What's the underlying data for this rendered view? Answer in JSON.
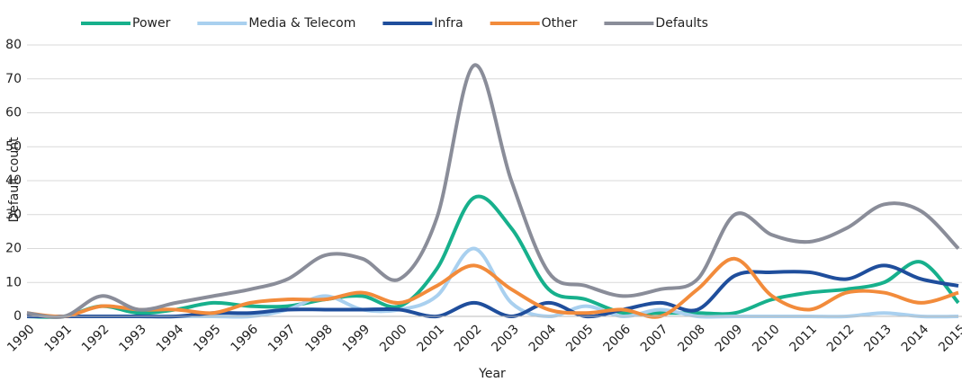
{
  "chart_data": {
    "type": "line",
    "x_label": "Year",
    "y_label": "Default count",
    "categories": [
      "1990",
      "1991",
      "1992",
      "1993",
      "1994",
      "1995",
      "1996",
      "1997",
      "1998",
      "1999",
      "2000",
      "2001",
      "2002",
      "2003",
      "2004",
      "2005",
      "2006",
      "2007",
      "2008",
      "2009",
      "2010",
      "2011",
      "2012",
      "2013",
      "2014",
      "2015"
    ],
    "series": [
      {
        "name": "Power",
        "color": "#17b08c",
        "values": [
          0,
          0,
          3,
          1,
          2,
          4,
          3,
          3,
          5,
          6,
          3,
          14,
          35,
          26,
          8,
          5,
          1,
          1,
          1,
          1,
          5,
          7,
          8,
          10,
          16,
          4
        ]
      },
      {
        "name": "Media & Telecom",
        "color": "#a9d0ef",
        "values": [
          0,
          0,
          0,
          0,
          0,
          0,
          0,
          2,
          6,
          2,
          2,
          6,
          20,
          4,
          0,
          3,
          0,
          2,
          0,
          0,
          0,
          0,
          0,
          1,
          0,
          0
        ]
      },
      {
        "name": "Infra",
        "color": "#1f4e9c",
        "values": [
          0,
          0,
          0,
          0,
          0,
          1,
          1,
          2,
          2,
          2,
          2,
          0,
          4,
          0,
          4,
          0,
          2,
          4,
          2,
          12,
          13,
          13,
          11,
          15,
          11,
          9
        ]
      },
      {
        "name": "Other",
        "color": "#f28b3b",
        "values": [
          1,
          0,
          3,
          2,
          2,
          1,
          4,
          5,
          5,
          7,
          4,
          9,
          15,
          8,
          2,
          1,
          2,
          0,
          8,
          17,
          6,
          2,
          7,
          7,
          4,
          7
        ]
      },
      {
        "name": "Defaults",
        "color": "#8a8d99",
        "values": [
          1,
          0,
          6,
          2,
          4,
          6,
          8,
          11,
          18,
          17,
          11,
          29,
          74,
          40,
          13,
          9,
          6,
          8,
          11,
          30,
          24,
          22,
          26,
          33,
          31,
          20
        ]
      }
    ],
    "ylim": [
      0,
      80
    ],
    "yticks": [
      0,
      10,
      20,
      30,
      40,
      50,
      60,
      70,
      80
    ],
    "grid": true,
    "smooth": true
  }
}
